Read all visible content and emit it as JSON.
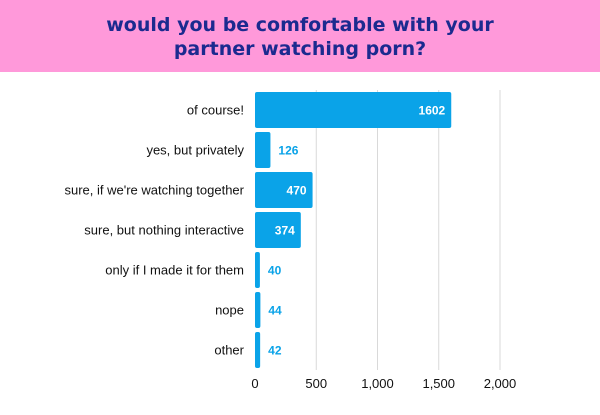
{
  "chart_data": {
    "type": "bar",
    "orientation": "horizontal",
    "title": "would you be comfortable with your partner watching porn?",
    "categories": [
      "of course!",
      "yes, but privately",
      "sure, if we're watching together",
      "sure, but nothing interactive",
      "only if I made it for them",
      "nope",
      "other"
    ],
    "values": [
      1602,
      126,
      470,
      374,
      40,
      44,
      42
    ],
    "xlim": [
      0,
      2000
    ],
    "xticks": [
      0,
      500,
      1000,
      1500,
      2000
    ],
    "xtick_labels": [
      "0",
      "500",
      "1,000",
      "1,500",
      "2,000"
    ],
    "grid": true,
    "colors": {
      "bar": "#0aa3e8",
      "header_bg": "#ff99da",
      "title": "#1b2a8f",
      "grid": "#d9d9d9",
      "label_inside": "#ffffff",
      "label_outside": "#0aa3e8"
    }
  }
}
